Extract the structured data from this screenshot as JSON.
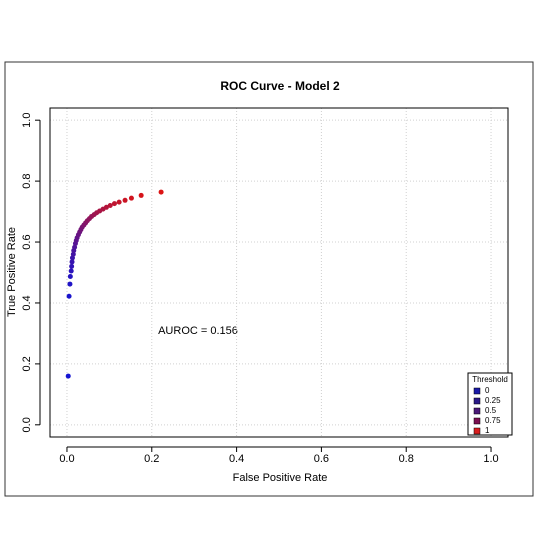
{
  "chart_data": {
    "type": "scatter",
    "title": "ROC Curve - Model 2",
    "x_label": "False Positive Rate",
    "y_label": "True Positive Rate",
    "annotation": "AUROC = 0.156",
    "x": [
      0.003,
      0.005,
      0.007,
      0.008,
      0.01,
      0.011,
      0.012,
      0.013,
      0.015,
      0.016,
      0.018,
      0.02,
      0.022,
      0.024,
      0.027,
      0.03,
      0.033,
      0.036,
      0.04,
      0.044,
      0.048,
      0.053,
      0.058,
      0.064,
      0.07,
      0.077,
      0.085,
      0.093,
      0.102,
      0.112,
      0.123,
      0.137,
      0.152,
      0.175,
      0.222
    ],
    "values": [
      0.16,
      0.422,
      0.462,
      0.487,
      0.505,
      0.52,
      0.535,
      0.548,
      0.56,
      0.572,
      0.583,
      0.595,
      0.605,
      0.614,
      0.624,
      0.633,
      0.641,
      0.649,
      0.656,
      0.663,
      0.67,
      0.677,
      0.684,
      0.69,
      0.696,
      0.702,
      0.708,
      0.714,
      0.72,
      0.726,
      0.731,
      0.737,
      0.744,
      0.753,
      0.764
    ],
    "color_ramp": [
      "#1414d2",
      "#dc1414"
    ],
    "xlim": [
      -0.04,
      1.04
    ],
    "ylim": [
      -0.04,
      1.04
    ],
    "xticks": [
      {
        "value": 0,
        "label": "0.0"
      },
      0.2,
      0.4,
      0.6,
      0.8,
      {
        "value": 1,
        "label": "1.0"
      }
    ],
    "yticks": [
      {
        "value": 0,
        "label": "0.0"
      },
      0.2,
      0.4,
      0.6,
      0.8,
      {
        "value": 1,
        "label": "1.0"
      }
    ],
    "grid": true,
    "legend": {
      "title": "Threshold",
      "position": "bottom-right",
      "labels": [
        "0",
        "0.25",
        "0.5",
        "0.75",
        "1"
      ],
      "colors": [
        "#1a1aa8",
        "#2a1a88",
        "#4a1a78",
        "#7a1050",
        "#d81e1e"
      ]
    }
  }
}
